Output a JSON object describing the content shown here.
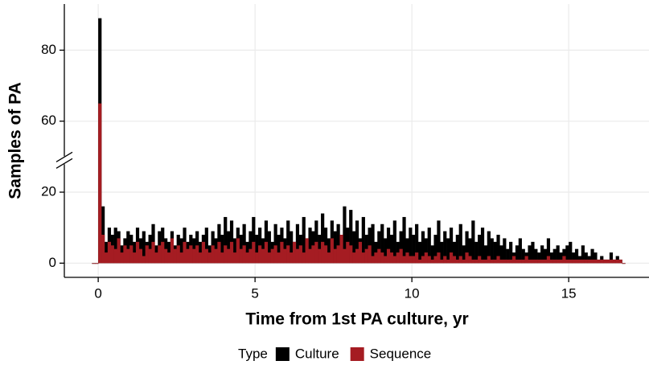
{
  "chart_data": {
    "type": "histogram",
    "xlabel": "Time from 1st PA culture, yr",
    "ylabel": "Samples of PA",
    "legend_title": "Type",
    "legend_position": "bottom",
    "grid": true,
    "xlim": [
      -1.08,
      17.56
    ],
    "xticks": [
      0,
      5,
      10,
      15
    ],
    "ylim": [
      -4,
      93
    ],
    "yticks": [
      0,
      20,
      60,
      80
    ],
    "y_break": [
      29,
      49
    ],
    "bins": [
      -0.2,
      -0.1,
      0,
      0.1,
      0.2,
      0.3,
      0.4,
      0.5,
      0.6,
      0.7,
      0.8,
      0.9,
      1,
      1.1,
      1.2,
      1.3,
      1.4,
      1.5,
      1.6,
      1.7,
      1.8,
      1.9,
      2,
      2.1,
      2.2,
      2.3,
      2.4,
      2.5,
      2.6,
      2.7,
      2.8,
      2.9,
      3,
      3.1,
      3.2,
      3.3,
      3.4,
      3.5,
      3.6,
      3.7,
      3.8,
      3.9,
      4,
      4.1,
      4.2,
      4.3,
      4.4,
      4.5,
      4.6,
      4.7,
      4.8,
      4.9,
      5,
      5.1,
      5.2,
      5.3,
      5.4,
      5.5,
      5.6,
      5.7,
      5.8,
      5.9,
      6,
      6.1,
      6.2,
      6.3,
      6.4,
      6.5,
      6.6,
      6.7,
      6.8,
      6.9,
      7,
      7.1,
      7.2,
      7.3,
      7.4,
      7.5,
      7.6,
      7.7,
      7.8,
      7.9,
      8,
      8.1,
      8.2,
      8.3,
      8.4,
      8.5,
      8.6,
      8.7,
      8.8,
      8.9,
      9,
      9.1,
      9.2,
      9.3,
      9.4,
      9.5,
      9.6,
      9.7,
      9.8,
      9.9,
      10,
      10.1,
      10.2,
      10.3,
      10.4,
      10.5,
      10.6,
      10.7,
      10.8,
      10.9,
      11,
      11.1,
      11.2,
      11.3,
      11.4,
      11.5,
      11.6,
      11.7,
      11.8,
      11.9,
      12,
      12.1,
      12.2,
      12.3,
      12.4,
      12.5,
      12.6,
      12.7,
      12.8,
      12.9,
      13,
      13.1,
      13.2,
      13.3,
      13.4,
      13.5,
      13.6,
      13.7,
      13.8,
      13.9,
      14,
      14.1,
      14.2,
      14.3,
      14.4,
      14.5,
      14.6,
      14.7,
      14.8,
      14.9,
      15,
      15.1,
      15.2,
      15.3,
      15.4,
      15.5,
      15.6,
      15.7,
      15.8,
      15.9,
      16,
      16.1,
      16.2,
      16.3,
      16.4,
      16.5,
      16.6,
      16.7,
      16.8
    ],
    "series": [
      {
        "name": "Culture",
        "color": "#000000",
        "values": [
          0,
          0,
          89,
          16,
          6,
          10,
          8,
          10,
          9,
          5,
          7,
          9,
          8,
          6,
          10,
          7,
          9,
          6,
          8,
          11,
          5,
          9,
          10,
          7,
          6,
          9,
          5,
          8,
          7,
          10,
          6,
          8,
          7,
          9,
          6,
          8,
          10,
          5,
          9,
          7,
          11,
          8,
          13,
          9,
          12,
          7,
          10,
          8,
          11,
          6,
          9,
          13,
          8,
          10,
          7,
          12,
          9,
          6,
          11,
          8,
          10,
          7,
          12,
          9,
          6,
          11,
          8,
          13,
          7,
          10,
          9,
          12,
          8,
          14,
          10,
          7,
          12,
          9,
          11,
          8,
          16,
          10,
          15,
          9,
          12,
          7,
          13,
          8,
          10,
          11,
          6,
          9,
          11,
          7,
          10,
          8,
          12,
          6,
          9,
          13,
          7,
          10,
          8,
          11,
          6,
          9,
          7,
          10,
          5,
          8,
          12,
          6,
          9,
          7,
          10,
          6,
          8,
          11,
          5,
          9,
          7,
          12,
          6,
          8,
          10,
          5,
          9,
          7,
          6,
          8,
          5,
          7,
          4,
          6,
          3,
          5,
          7,
          4,
          3,
          5,
          6,
          4,
          3,
          5,
          4,
          7,
          3,
          4,
          5,
          3,
          4,
          5,
          6,
          3,
          4,
          2,
          5,
          3,
          2,
          4,
          3,
          1,
          2,
          1,
          1,
          3,
          1,
          2,
          1,
          0
        ]
      },
      {
        "name": "Sequence",
        "color": "#a51c22",
        "values": [
          0,
          0,
          65,
          8,
          3,
          6,
          5,
          4,
          7,
          3,
          5,
          4,
          5,
          3,
          6,
          4,
          2,
          5,
          4,
          6,
          3,
          5,
          6,
          4,
          3,
          7,
          4,
          5,
          3,
          6,
          4,
          5,
          4,
          5,
          3,
          6,
          4,
          3,
          5,
          4,
          6,
          3,
          5,
          4,
          6,
          3,
          7,
          4,
          5,
          3,
          4,
          6,
          3,
          5,
          4,
          6,
          3,
          4,
          5,
          3,
          6,
          4,
          5,
          3,
          6,
          4,
          5,
          3,
          7,
          4,
          5,
          6,
          4,
          6,
          5,
          3,
          7,
          4,
          5,
          8,
          4,
          6,
          5,
          3,
          4,
          6,
          3,
          4,
          5,
          2,
          3,
          4,
          3,
          2,
          4,
          3,
          2,
          3,
          4,
          2,
          3,
          2,
          2,
          3,
          1,
          2,
          3,
          2,
          1,
          2,
          3,
          1,
          2,
          1,
          3,
          2,
          1,
          2,
          1,
          3,
          2,
          1,
          1,
          2,
          1,
          1,
          2,
          1,
          1,
          2,
          1,
          1,
          1,
          1,
          2,
          1,
          1,
          1,
          2,
          1,
          1,
          1,
          1,
          1,
          1,
          2,
          1,
          1,
          1,
          1,
          2,
          1,
          1,
          1,
          1,
          1,
          1,
          1,
          1,
          1,
          1,
          1,
          1,
          1,
          1,
          1,
          1,
          1,
          1,
          0
        ]
      }
    ]
  }
}
